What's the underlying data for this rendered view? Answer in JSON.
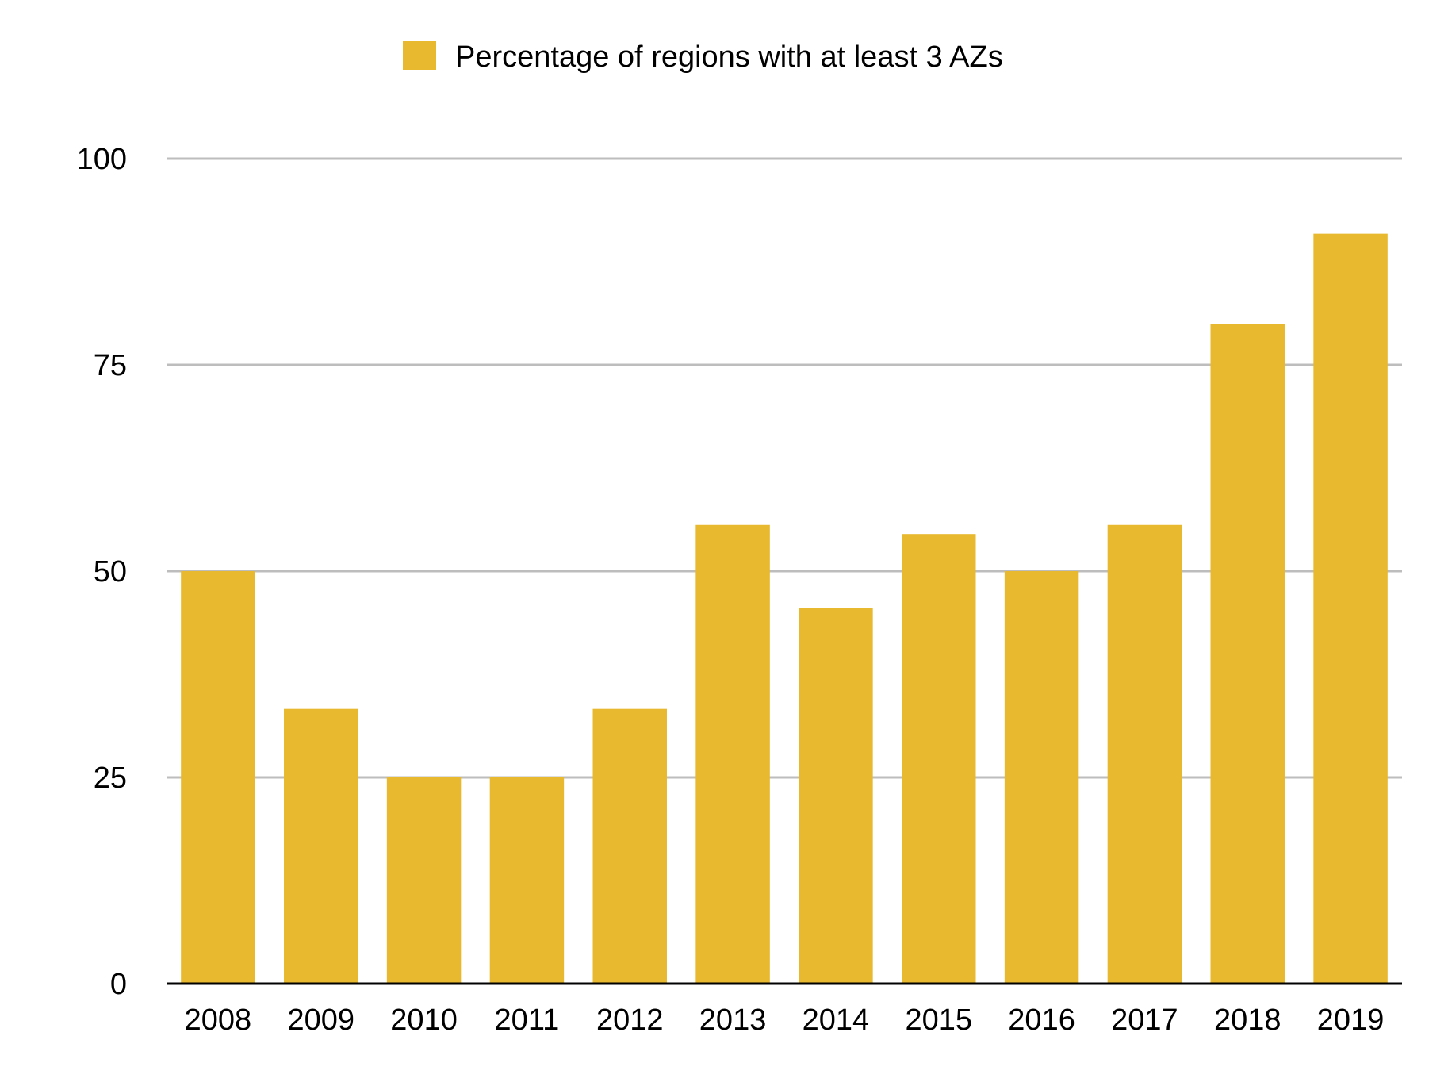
{
  "chart_data": {
    "type": "bar",
    "categories": [
      "2008",
      "2009",
      "2010",
      "2011",
      "2012",
      "2013",
      "2014",
      "2015",
      "2016",
      "2017",
      "2018",
      "2019"
    ],
    "series": [
      {
        "name": "Percentage of regions with at least 3 AZs",
        "values": [
          50,
          33.3,
          25,
          25,
          33.3,
          55.6,
          45.5,
          54.5,
          50,
          55.6,
          80,
          90.9
        ],
        "color": "#E8B92E"
      }
    ],
    "ylim": [
      0,
      100
    ],
    "yticks": [
      0,
      25,
      50,
      75,
      100
    ],
    "ytick_labels": [
      "0",
      "25",
      "50",
      "75",
      "100"
    ],
    "grid": true,
    "legend_position": "top-center",
    "colors": {
      "bar": "#E8B92E",
      "grid": "#BDBDBD",
      "axis": "#000000"
    }
  }
}
